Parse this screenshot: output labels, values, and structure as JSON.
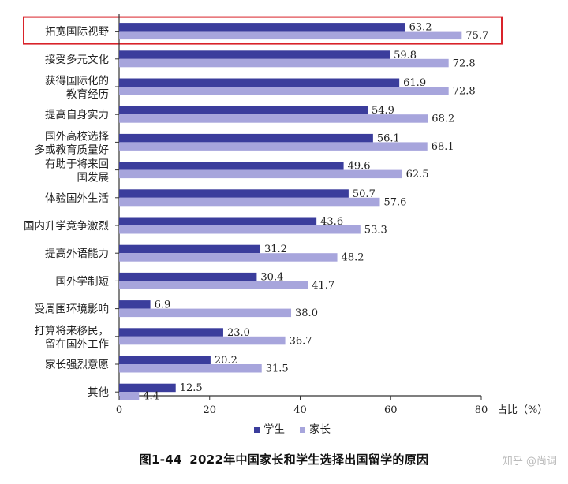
{
  "chart_data": {
    "type": "bar",
    "orientation": "horizontal",
    "categories": [
      [
        "拓宽国际视野"
      ],
      [
        "接受多元文化"
      ],
      [
        "获得国际化的",
        "教育经历"
      ],
      [
        "提高自身实力"
      ],
      [
        "国外高校选择",
        "多或教育质量好"
      ],
      [
        "有助于将来回",
        "国发展"
      ],
      [
        "体验国外生活"
      ],
      [
        "国内升学竞争激烈"
      ],
      [
        "提高外语能力"
      ],
      [
        "国外学制短"
      ],
      [
        "受周围环境影响"
      ],
      [
        "打算将来移民，",
        "留在国外工作"
      ],
      [
        "家长强烈意愿"
      ],
      [
        "其他"
      ]
    ],
    "series": [
      {
        "name": "学生",
        "color": "#3b3d9c",
        "values": [
          63.2,
          59.8,
          61.9,
          54.9,
          56.1,
          49.6,
          50.7,
          43.6,
          31.2,
          30.4,
          6.9,
          23.0,
          20.2,
          12.5
        ]
      },
      {
        "name": "家长",
        "color": "#a7a5dc",
        "values": [
          75.7,
          72.8,
          72.8,
          68.2,
          68.1,
          62.5,
          57.6,
          53.3,
          48.2,
          41.7,
          38.0,
          36.7,
          31.5,
          4.4
        ]
      }
    ],
    "xlim": [
      0,
      80
    ],
    "xticks": [
      "0",
      "20",
      "40",
      "60",
      "80"
    ],
    "xlabel": "占比（%）",
    "highlight_category_index": 0,
    "highlight_color": "#d9232a",
    "legend_position": "bottom"
  },
  "caption": {
    "figure_no": "图1-44",
    "title": "2022年中国家长和学生选择出国留学的原因"
  },
  "watermark": "知乎 @尚词"
}
